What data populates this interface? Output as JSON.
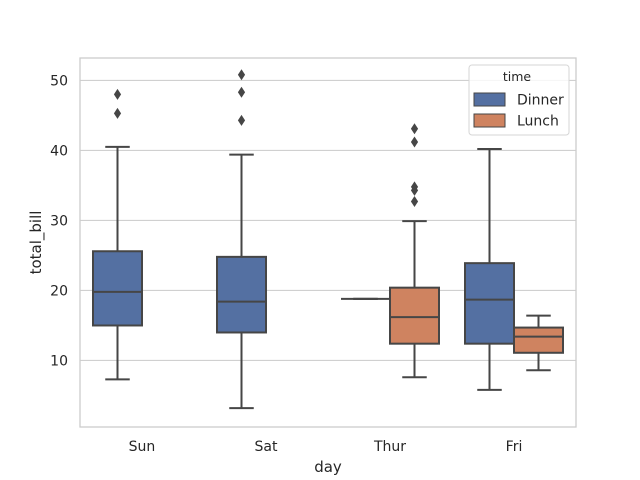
{
  "chart_data": {
    "type": "box",
    "title": "",
    "xlabel": "day",
    "ylabel": "total_bill",
    "categories": [
      "Sun",
      "Sat",
      "Thur",
      "Fri"
    ],
    "ylim": [
      0.5,
      53.2
    ],
    "yticks": [
      10,
      20,
      30,
      40,
      50
    ],
    "grid": "horizontal",
    "legend": {
      "title": "time",
      "placement": "top-right",
      "entries": [
        "Dinner",
        "Lunch"
      ]
    },
    "colors": {
      "Dinner": "#5470a2",
      "Lunch": "#cf8360",
      "edge": "#464646",
      "grid": "#d0d0d0",
      "spine": "#cccccc"
    },
    "series": [
      {
        "name": "Dinner",
        "boxes": [
          {
            "category": "Sun",
            "whislo": 7.3,
            "q1": 15.0,
            "med": 19.8,
            "q3": 25.6,
            "whishi": 40.5,
            "fliers": [
              48.0,
              45.3
            ]
          },
          {
            "category": "Sat",
            "whislo": 3.2,
            "q1": 14.0,
            "med": 18.4,
            "q3": 24.8,
            "whishi": 39.4,
            "fliers": [
              50.8,
              48.3,
              44.3
            ]
          },
          {
            "category": "Thur",
            "whislo": 18.8,
            "q1": 18.8,
            "med": 18.8,
            "q3": 18.8,
            "whishi": 18.8,
            "fliers": []
          },
          {
            "category": "Fri",
            "whislo": 5.8,
            "q1": 12.4,
            "med": 18.7,
            "q3": 23.9,
            "whishi": 40.2,
            "fliers": []
          }
        ]
      },
      {
        "name": "Lunch",
        "boxes": [
          {
            "category": "Thur",
            "whislo": 7.6,
            "q1": 12.4,
            "med": 16.2,
            "q3": 20.4,
            "whishi": 29.9,
            "fliers": [
              43.1,
              41.2,
              34.8,
              34.3,
              32.7
            ]
          },
          {
            "category": "Fri",
            "whislo": 8.6,
            "q1": 11.1,
            "med": 13.4,
            "q3": 14.7,
            "whishi": 16.4,
            "fliers": []
          }
        ]
      }
    ]
  }
}
